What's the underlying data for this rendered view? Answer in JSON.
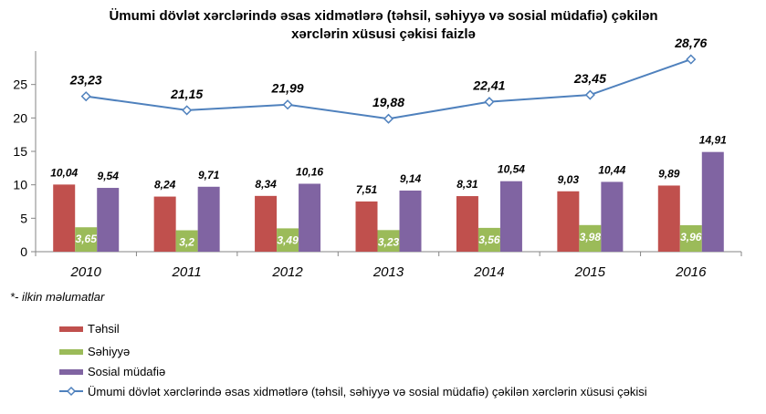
{
  "chart_data": {
    "type": "bar",
    "title_lines": [
      "Ümumi dövlət xərclərində əsas xidmətlərə (təhsil, səhiyyə və sosial müdafiə) çəkilən",
      "xərclərin xüsusi çəkisi faizlə"
    ],
    "categories": [
      "2010",
      "2011",
      "2012",
      "2013",
      "2014",
      "2015",
      "2016"
    ],
    "ylim": [
      0,
      30
    ],
    "yticks": [
      "0",
      "5",
      "10",
      "15",
      "20",
      "25"
    ],
    "ytick_values": [
      0,
      5,
      10,
      15,
      20,
      25
    ],
    "series": [
      {
        "name": "Təhsil",
        "kind": "bar",
        "color": "#C0504D",
        "values": [
          10.04,
          8.24,
          8.34,
          7.51,
          8.31,
          9.03,
          9.89
        ],
        "labels": [
          "10,04",
          "8,24",
          "8,34",
          "7,51",
          "8,31",
          "9,03",
          "9,89"
        ]
      },
      {
        "name": "Səhiyyə",
        "kind": "bar",
        "color": "#9BBB59",
        "values": [
          3.65,
          3.2,
          3.49,
          3.23,
          3.56,
          3.98,
          3.96
        ],
        "labels": [
          "3,65",
          "3,2",
          "3,49",
          "3,23",
          "3,56",
          "3,98",
          "3,96"
        ]
      },
      {
        "name": "Sosial müdafiə",
        "kind": "bar",
        "color": "#8064A2",
        "values": [
          9.54,
          9.71,
          10.16,
          9.14,
          10.54,
          10.44,
          14.91
        ],
        "labels": [
          "9,54",
          "9,71",
          "10,16",
          "9,14",
          "10,54",
          "10,44",
          "14,91"
        ]
      },
      {
        "name": "Ümumi dövlət xərclərində əsas xidmətlərə (təhsil, səhiyyə və sosial müdafiə) çəkilən xərclərin xüsusi çəkisi",
        "kind": "line",
        "color": "#4F81BD",
        "values": [
          23.23,
          21.15,
          21.99,
          19.88,
          22.41,
          23.45,
          28.76
        ],
        "labels": [
          "23,23",
          "21,15",
          "21,99",
          "19,88",
          "22,41",
          "23,45",
          "28,76"
        ]
      }
    ],
    "note": "*- ilkin məlumatlar",
    "grid": false,
    "legend_position": "bottom-left"
  }
}
